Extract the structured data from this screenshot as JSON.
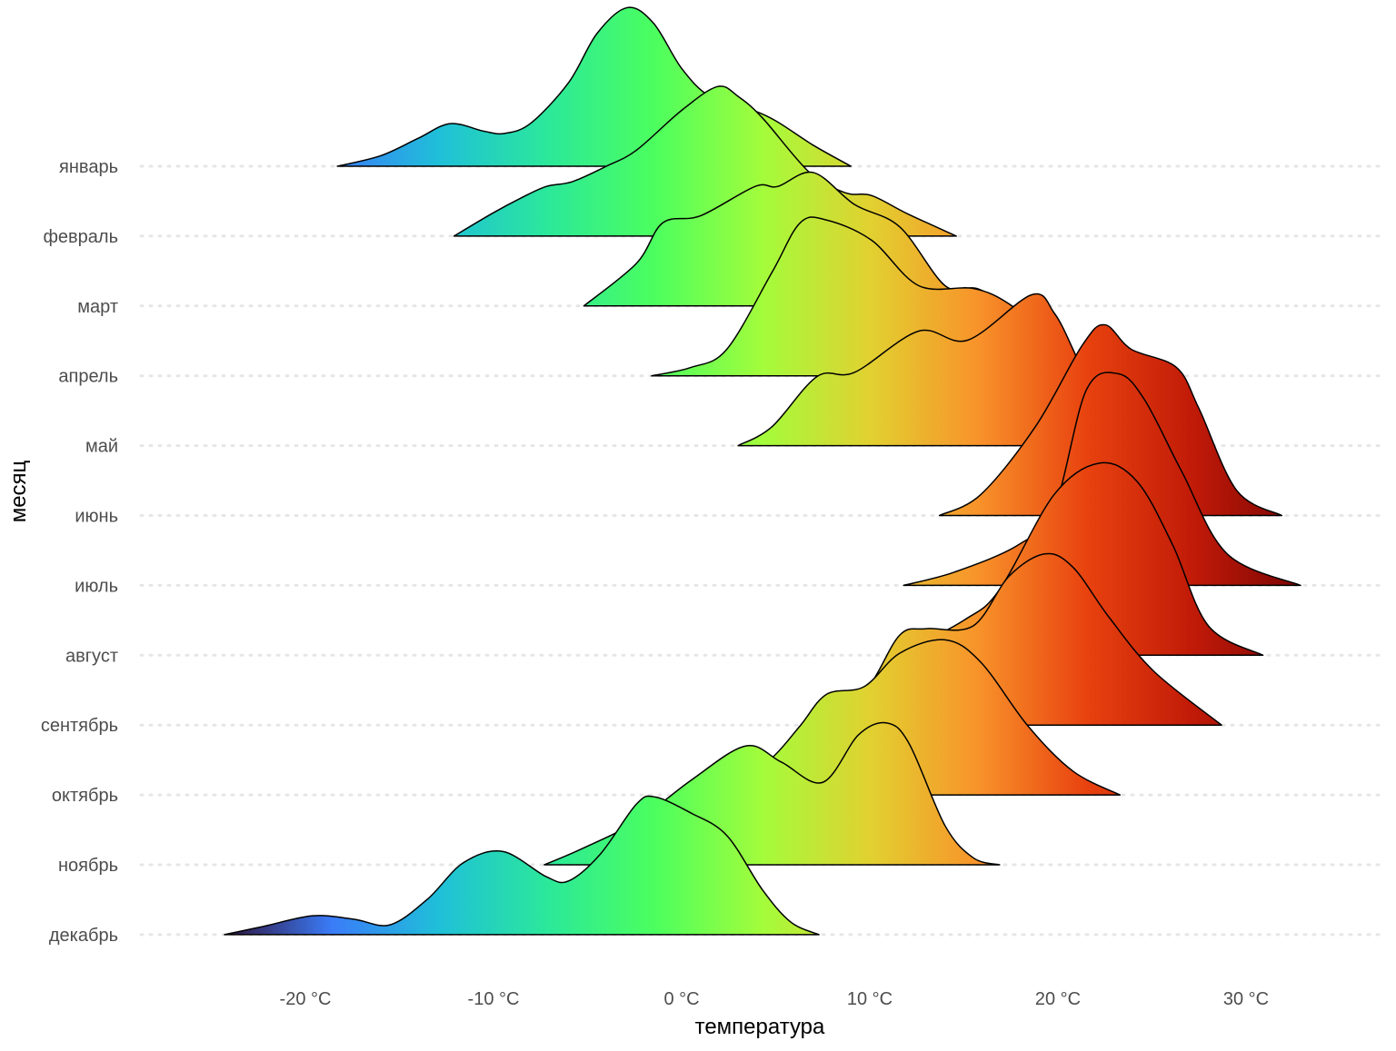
{
  "chart_data": {
    "type": "ridgeline",
    "xlabel": "температура",
    "ylabel": "месяц",
    "xlim": [
      -28,
      35
    ],
    "x_ticks": [
      -20,
      -10,
      0,
      10,
      20,
      30
    ],
    "x_tick_labels": [
      "-20 °C",
      "-10 °C",
      "0 °C",
      "10 °C",
      "20 °C",
      "30 °C"
    ],
    "grid": "dotted horizontal at each month",
    "colormap": [
      "#30123b",
      "#3a7cf8",
      "#1fc0d8",
      "#2be89a",
      "#4cff5e",
      "#a4fc3b",
      "#e2d030",
      "#f8922a",
      "#e8420f",
      "#c01a08",
      "#7a0403"
    ],
    "colormap_range": [
      -24.3,
      33
    ],
    "series": [
      {
        "name": "январь",
        "x": [
          -18.3,
          -16,
          -14,
          -12.3,
          -10.5,
          -9.4,
          -8,
          -6,
          -4.5,
          -2.9,
          -1.5,
          0,
          1.5,
          3.6,
          5,
          7,
          9
        ],
        "density": [
          0,
          0.15,
          0.4,
          0.61,
          0.5,
          0.47,
          0.62,
          1.2,
          1.9,
          2.27,
          2.05,
          1.4,
          1.0,
          0.82,
          0.65,
          0.3,
          0
        ]
      },
      {
        "name": "февраль",
        "x": [
          -12.1,
          -10.1,
          -8.5,
          -7.2,
          -5.8,
          -4,
          -2.4,
          0,
          1.9,
          3,
          4.3,
          6.8,
          8.7,
          10.1,
          12,
          14.6
        ],
        "density": [
          0,
          0.32,
          0.55,
          0.71,
          0.78,
          1.0,
          1.23,
          1.8,
          2.14,
          2.0,
          1.69,
          0.91,
          0.62,
          0.58,
          0.32,
          0
        ]
      },
      {
        "name": "март",
        "x": [
          -5.2,
          -2.4,
          -1,
          1,
          3.9,
          5.1,
          7,
          9.2,
          11.6,
          14,
          15.7,
          17.4
        ],
        "density": [
          0,
          0.61,
          1.19,
          1.29,
          1.71,
          1.71,
          1.91,
          1.45,
          1.13,
          0.29,
          0.25,
          0
        ]
      },
      {
        "name": "апрель",
        "x": [
          -1.6,
          0.5,
          2.4,
          4.8,
          6.3,
          7.7,
          10.1,
          12.6,
          15.5,
          17.4,
          19.3,
          21
        ],
        "density": [
          0,
          0.12,
          0.38,
          1.48,
          2.19,
          2.23,
          1.94,
          1.29,
          1.25,
          1.03,
          0.57,
          0
        ]
      },
      {
        "name": "май",
        "x": [
          3,
          4.8,
          7.2,
          9.2,
          12.6,
          15.2,
          18.6,
          19.8,
          20.8,
          21.7,
          23
        ],
        "density": [
          0,
          0.27,
          0.99,
          1.05,
          1.64,
          1.51,
          2.16,
          1.9,
          1.38,
          0.79,
          0
        ]
      },
      {
        "name": "июнь",
        "x": [
          13.7,
          15.9,
          18.8,
          21.3,
          22.5,
          23.9,
          26.3,
          27.5,
          29.5,
          31.9
        ],
        "density": [
          0,
          0.3,
          1.27,
          2.44,
          2.73,
          2.38,
          2.12,
          1.53,
          0.36,
          0
        ]
      },
      {
        "name": "июль",
        "x": [
          11.8,
          14.5,
          17.9,
          19.8,
          21.5,
          23.2,
          24.6,
          26.6,
          29,
          32.9
        ],
        "density": [
          0,
          0.19,
          0.58,
          1.1,
          2.79,
          3.03,
          2.66,
          1.62,
          0.45,
          0
        ]
      },
      {
        "name": "август",
        "x": [
          11.5,
          15,
          16.9,
          19.8,
          22.2,
          24.2,
          26.1,
          28,
          30.9
        ],
        "density": [
          0,
          0.5,
          0.94,
          2.3,
          2.75,
          2.49,
          1.58,
          0.42,
          0
        ]
      },
      {
        "name": "сентябрь",
        "x": [
          8,
          10,
          11.6,
          13,
          15.5,
          17.4,
          19.3,
          20.8,
          22.7,
          25.1,
          28.7
        ],
        "density": [
          0,
          0.57,
          1.29,
          1.38,
          1.42,
          2.13,
          2.45,
          2.26,
          1.55,
          0.77,
          0
        ]
      },
      {
        "name": "октябрь",
        "x": [
          0,
          3,
          4.8,
          6.3,
          7.7,
          9.7,
          11.6,
          14,
          15.9,
          18.4,
          20.8,
          23.3
        ],
        "density": [
          0,
          0.2,
          0.53,
          0.99,
          1.44,
          1.55,
          2.03,
          2.22,
          1.9,
          0.99,
          0.34,
          0
        ]
      },
      {
        "name": "ноябрь",
        "x": [
          -7.3,
          -5.3,
          -2.4,
          0.5,
          3.4,
          5.3,
          7.5,
          9.4,
          10.9,
          12.1,
          14,
          15.5,
          16.9
        ],
        "density": [
          0,
          0.23,
          0.62,
          1.21,
          1.7,
          1.47,
          1.18,
          1.86,
          2.03,
          1.73,
          0.56,
          0.1,
          0
        ]
      },
      {
        "name": "декабрь",
        "x": [
          -24.3,
          -22.2,
          -19.6,
          -17.4,
          -15.5,
          -13.5,
          -11.6,
          -9.5,
          -7.2,
          -6,
          -4.3,
          -2.4,
          -1.4,
          0.5,
          2.4,
          4.3,
          5.8,
          7.3
        ],
        "density": [
          0,
          0.12,
          0.27,
          0.22,
          0.14,
          0.51,
          1.03,
          1.19,
          0.83,
          0.77,
          1.16,
          1.87,
          1.97,
          1.74,
          1.42,
          0.64,
          0.18,
          0
        ]
      }
    ]
  }
}
